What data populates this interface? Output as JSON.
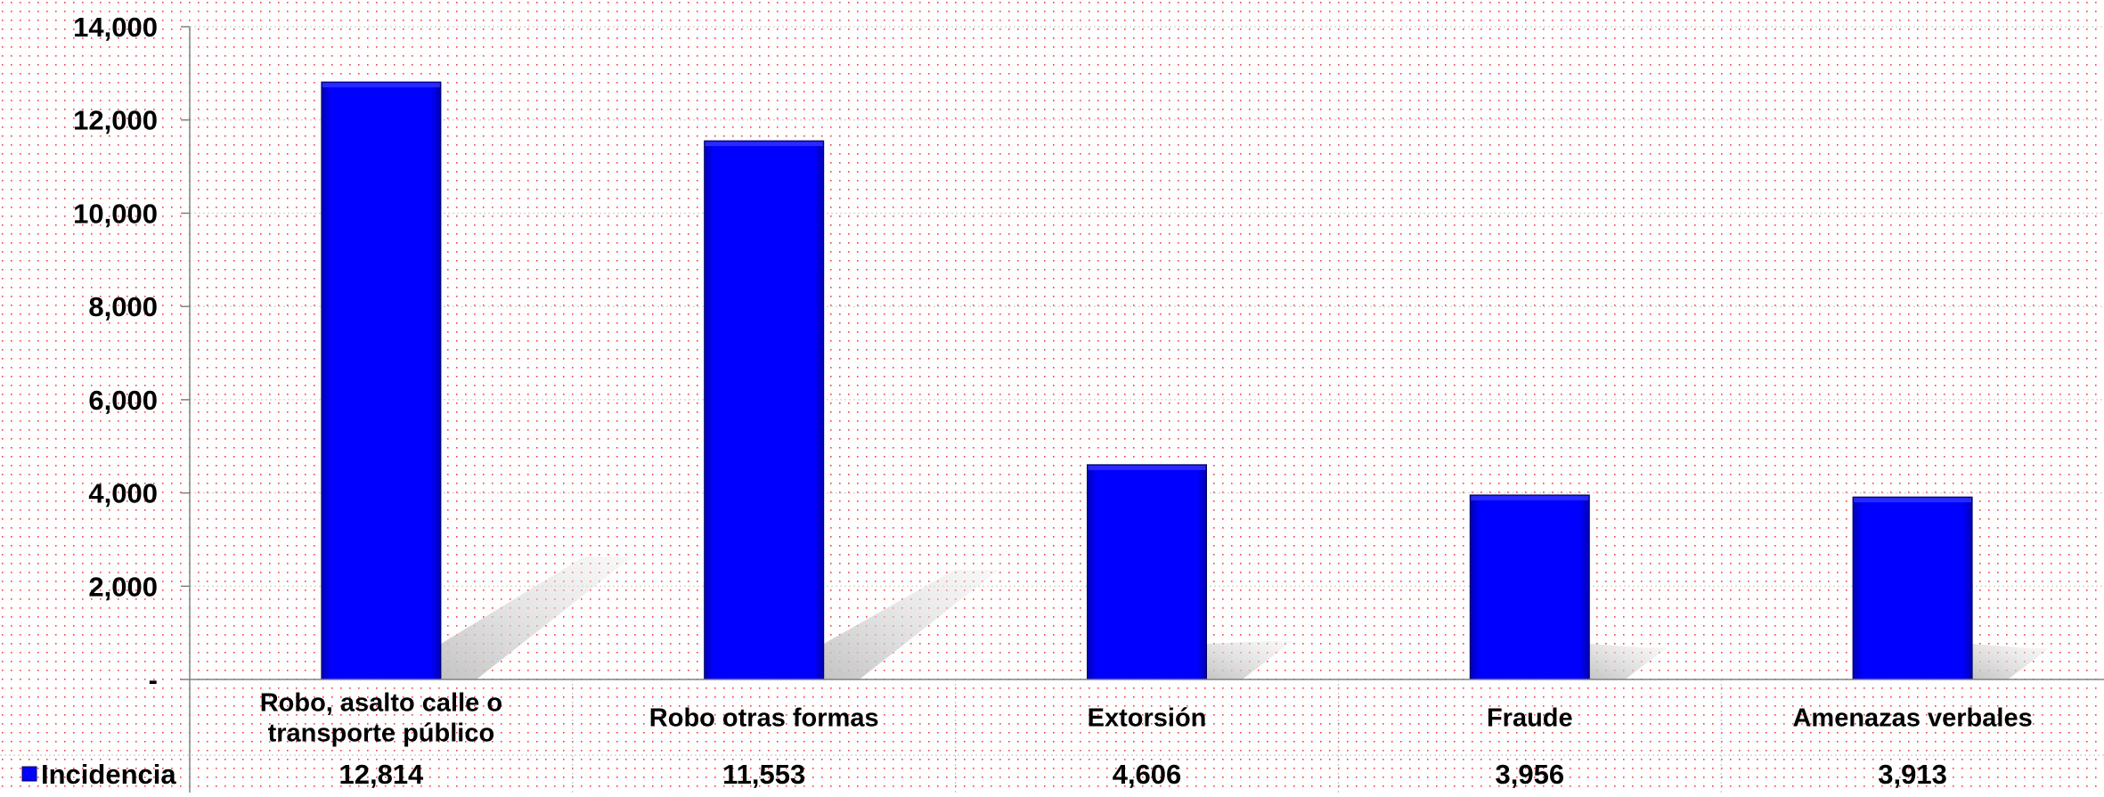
{
  "chart_data": {
    "type": "bar",
    "categories": [
      [
        "Robo, asalto calle o",
        "transporte público"
      ],
      [
        "Robo otras formas"
      ],
      [
        "Extorsión"
      ],
      [
        "Fraude"
      ],
      [
        "Amenazas verbales"
      ]
    ],
    "series": [
      {
        "name": "Incidencia",
        "values": [
          12814,
          11553,
          4606,
          3956,
          3913
        ],
        "value_labels": [
          "12,814",
          "11,553",
          "4,606",
          "3,956",
          "3,913"
        ],
        "color": "#0000FF"
      }
    ],
    "ylim": [
      0,
      14000
    ],
    "yticks": [
      {
        "value": 0,
        "label": "-"
      },
      {
        "value": 2000,
        "label": "2,000"
      },
      {
        "value": 4000,
        "label": "4,000"
      },
      {
        "value": 6000,
        "label": "6,000"
      },
      {
        "value": 8000,
        "label": "8,000"
      },
      {
        "value": 10000,
        "label": "10,000"
      },
      {
        "value": 12000,
        "label": "12,000"
      },
      {
        "value": 14000,
        "label": "14,000"
      }
    ],
    "grid": true,
    "legend": "data-table-left",
    "background_pattern_color": "#FF0000"
  }
}
